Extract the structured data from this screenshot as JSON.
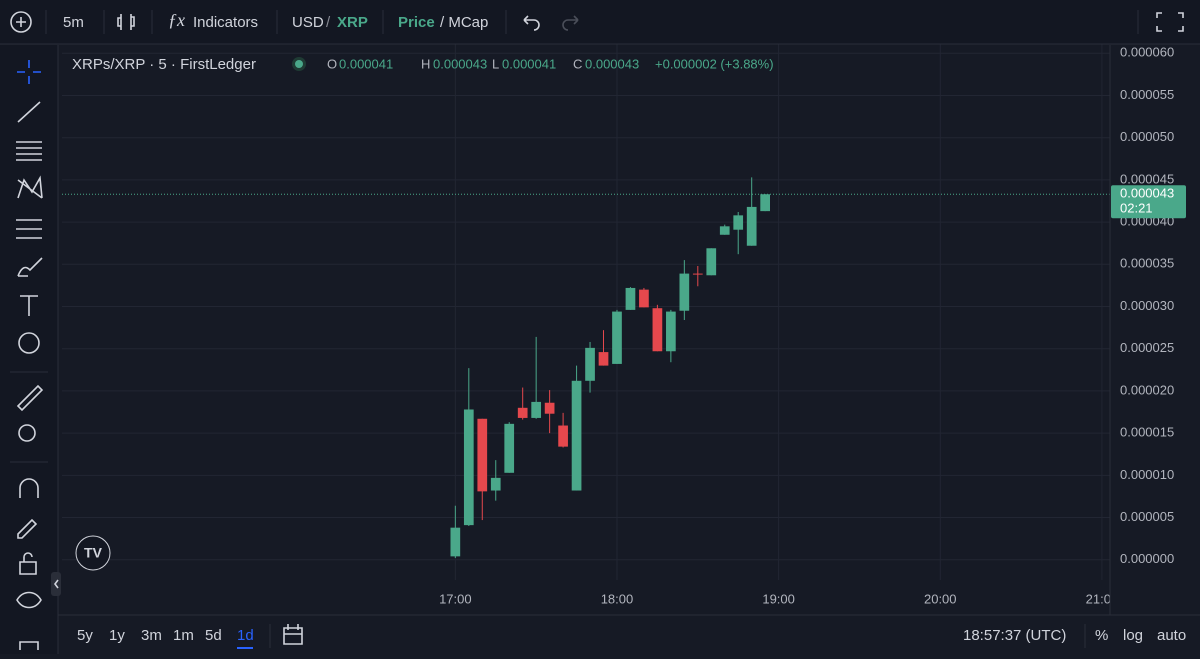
{
  "toolbar": {
    "interval": "5m",
    "indicators": "Indicators",
    "quote": "USD",
    "separator": "/",
    "base": "XRP",
    "price": "Price",
    "mcap": "/ MCap"
  },
  "legend": {
    "symbol": "XRPs/XRP · 5 · FirstLedger",
    "o_label": "O",
    "o": "0.000041",
    "h_label": "H",
    "h": "0.000043",
    "l_label": "L",
    "l": "0.000041",
    "c_label": "C",
    "c": "0.000043",
    "change": "+0.000002 (+3.88%)"
  },
  "price_label": {
    "price": "0.000043",
    "countdown": "02:21"
  },
  "bottom_bar": {
    "ranges": [
      "5y",
      "1y",
      "3m",
      "1m",
      "5d",
      "1d"
    ],
    "clock": "18:57:37 (UTC)",
    "percent": "%",
    "log": "log",
    "auto": "auto"
  },
  "chart_data": {
    "type": "candlestick",
    "x": [
      1020,
      1025,
      1030,
      1035,
      1040,
      1045,
      1050,
      1055,
      1060,
      1065,
      1070,
      1075,
      1080,
      1085,
      1090,
      1095,
      1100,
      1105,
      1110,
      1115,
      1120,
      1125,
      1130,
      1135
    ],
    "open": [
      4e-07,
      4.1e-06,
      1.67e-05,
      8.2e-06,
      1.03e-05,
      1.8e-05,
      1.68e-05,
      1.86e-05,
      1.59e-05,
      8.2e-06,
      2.12e-05,
      2.46e-05,
      2.32e-05,
      2.96e-05,
      3.2e-05,
      2.98e-05,
      2.47e-05,
      2.95e-05,
      3.39e-05,
      3.37e-05,
      3.85e-05,
      3.91e-05,
      3.72e-05,
      4.13e-05
    ],
    "high": [
      6.4e-06,
      2.27e-05,
      1.67e-05,
      1.18e-05,
      1.63e-05,
      2.04e-05,
      2.64e-05,
      2.01e-05,
      1.74e-05,
      2.3e-05,
      2.58e-05,
      2.72e-05,
      2.96e-05,
      3.23e-05,
      3.22e-05,
      3.02e-05,
      2.96e-05,
      3.55e-05,
      3.48e-05,
      3.69e-05,
      3.97e-05,
      4.12e-05,
      4.53e-05,
      4.33e-05
    ],
    "low": [
      2e-07,
      4e-06,
      4.7e-06,
      7e-06,
      1.03e-05,
      1.66e-05,
      1.67e-05,
      1.5e-05,
      1.33e-05,
      8.2e-06,
      1.98e-05,
      2.3e-05,
      2.32e-05,
      2.96e-05,
      2.99e-05,
      2.47e-05,
      2.34e-05,
      2.84e-05,
      3.24e-05,
      3.37e-05,
      3.85e-05,
      3.62e-05,
      3.72e-05,
      4.13e-05
    ],
    "close": [
      3.8e-06,
      1.78e-05,
      8.1e-06,
      9.7e-06,
      1.61e-05,
      1.68e-05,
      1.87e-05,
      1.73e-05,
      1.34e-05,
      2.12e-05,
      2.51e-05,
      2.3e-05,
      2.94e-05,
      3.22e-05,
      2.99e-05,
      2.47e-05,
      2.94e-05,
      3.39e-05,
      3.38e-05,
      3.69e-05,
      3.95e-05,
      4.08e-05,
      4.18e-05,
      4.33e-05
    ],
    "up_color": "#4aa88a",
    "down_color": "#e5484d",
    "xlim": [
      874,
      1263
    ],
    "xticks": [
      {
        "value": 1020,
        "label": "17:00"
      },
      {
        "value": 1080,
        "label": "18:00"
      },
      {
        "value": 1140,
        "label": "19:00"
      },
      {
        "value": 1200,
        "label": "20:00"
      },
      {
        "value": 1260,
        "label": "21:00"
      }
    ],
    "ylim": [
      -2.4e-06,
      6.11e-05
    ],
    "yticks": [
      {
        "value": 0,
        "label": "0.000000"
      },
      {
        "value": 5e-06,
        "label": "0.000005"
      },
      {
        "value": 1e-05,
        "label": "0.000010"
      },
      {
        "value": 1.5e-05,
        "label": "0.000015"
      },
      {
        "value": 2e-05,
        "label": "0.000020"
      },
      {
        "value": 2.5e-05,
        "label": "0.000025"
      },
      {
        "value": 3e-05,
        "label": "0.000030"
      },
      {
        "value": 3.5e-05,
        "label": "0.000035"
      },
      {
        "value": 4e-05,
        "label": "0.000040"
      },
      {
        "value": 4.5e-05,
        "label": "0.000045"
      },
      {
        "value": 5e-05,
        "label": "0.000050"
      },
      {
        "value": 5.5e-05,
        "label": "0.000055"
      },
      {
        "value": 6e-05,
        "label": "0.000060"
      }
    ],
    "grid": true
  }
}
